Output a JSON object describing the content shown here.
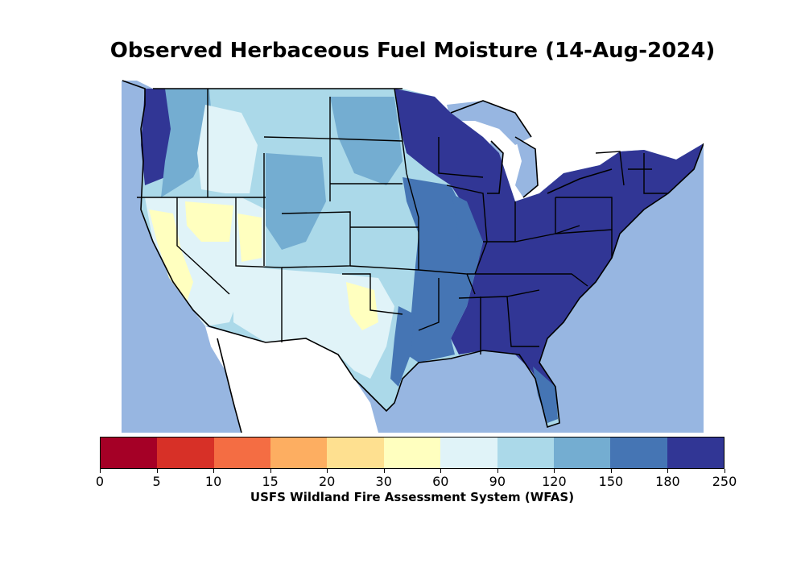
{
  "title": "Observed Herbaceous Fuel Moisture (14-Aug-2024)",
  "colorbar": {
    "label": "USFS Wildland Fire Assessment System (WFAS)",
    "ticks": [
      "0",
      "5",
      "10",
      "15",
      "20",
      "30",
      "60",
      "90",
      "120",
      "150",
      "180",
      "250"
    ],
    "colors": [
      "#a50026",
      "#d73027",
      "#f46d43",
      "#fdae61",
      "#fee090",
      "#ffffbf",
      "#e0f3f8",
      "#abd9e9",
      "#74add1",
      "#4575b4",
      "#313695"
    ]
  },
  "map": {
    "ocean_color": "#97b6e1",
    "land_outside_color": "#ffffff"
  }
}
